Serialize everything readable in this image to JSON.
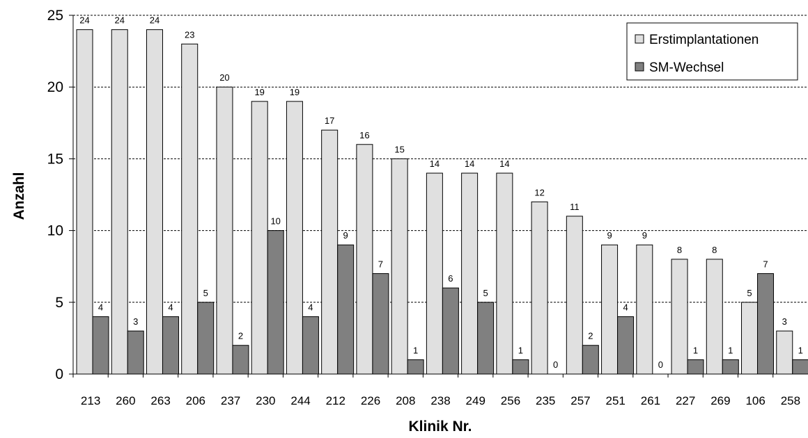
{
  "chart_data": {
    "type": "bar",
    "title": "",
    "xlabel": "Klinik Nr.",
    "ylabel": "Anzahl",
    "ylim": [
      0,
      25
    ],
    "yticks": [
      0,
      5,
      10,
      15,
      20,
      25
    ],
    "grid": "horizontal dashed",
    "legend_position": "top-right",
    "categories": [
      "213",
      "260",
      "263",
      "206",
      "237",
      "230",
      "244",
      "212",
      "226",
      "208",
      "238",
      "249",
      "256",
      "235",
      "257",
      "251",
      "261",
      "227",
      "269",
      "106",
      "258"
    ],
    "series": [
      {
        "name": "Erstimplantationen",
        "color": "#e0e0e0",
        "values": [
          24,
          24,
          24,
          23,
          20,
          19,
          19,
          17,
          16,
          15,
          14,
          14,
          14,
          12,
          11,
          9,
          9,
          8,
          8,
          5,
          3
        ]
      },
      {
        "name": "SM-Wechsel",
        "color": "#808080",
        "values": [
          4,
          3,
          4,
          5,
          2,
          10,
          4,
          9,
          7,
          1,
          6,
          5,
          1,
          0,
          2,
          4,
          0,
          1,
          1,
          7,
          1
        ]
      }
    ]
  }
}
